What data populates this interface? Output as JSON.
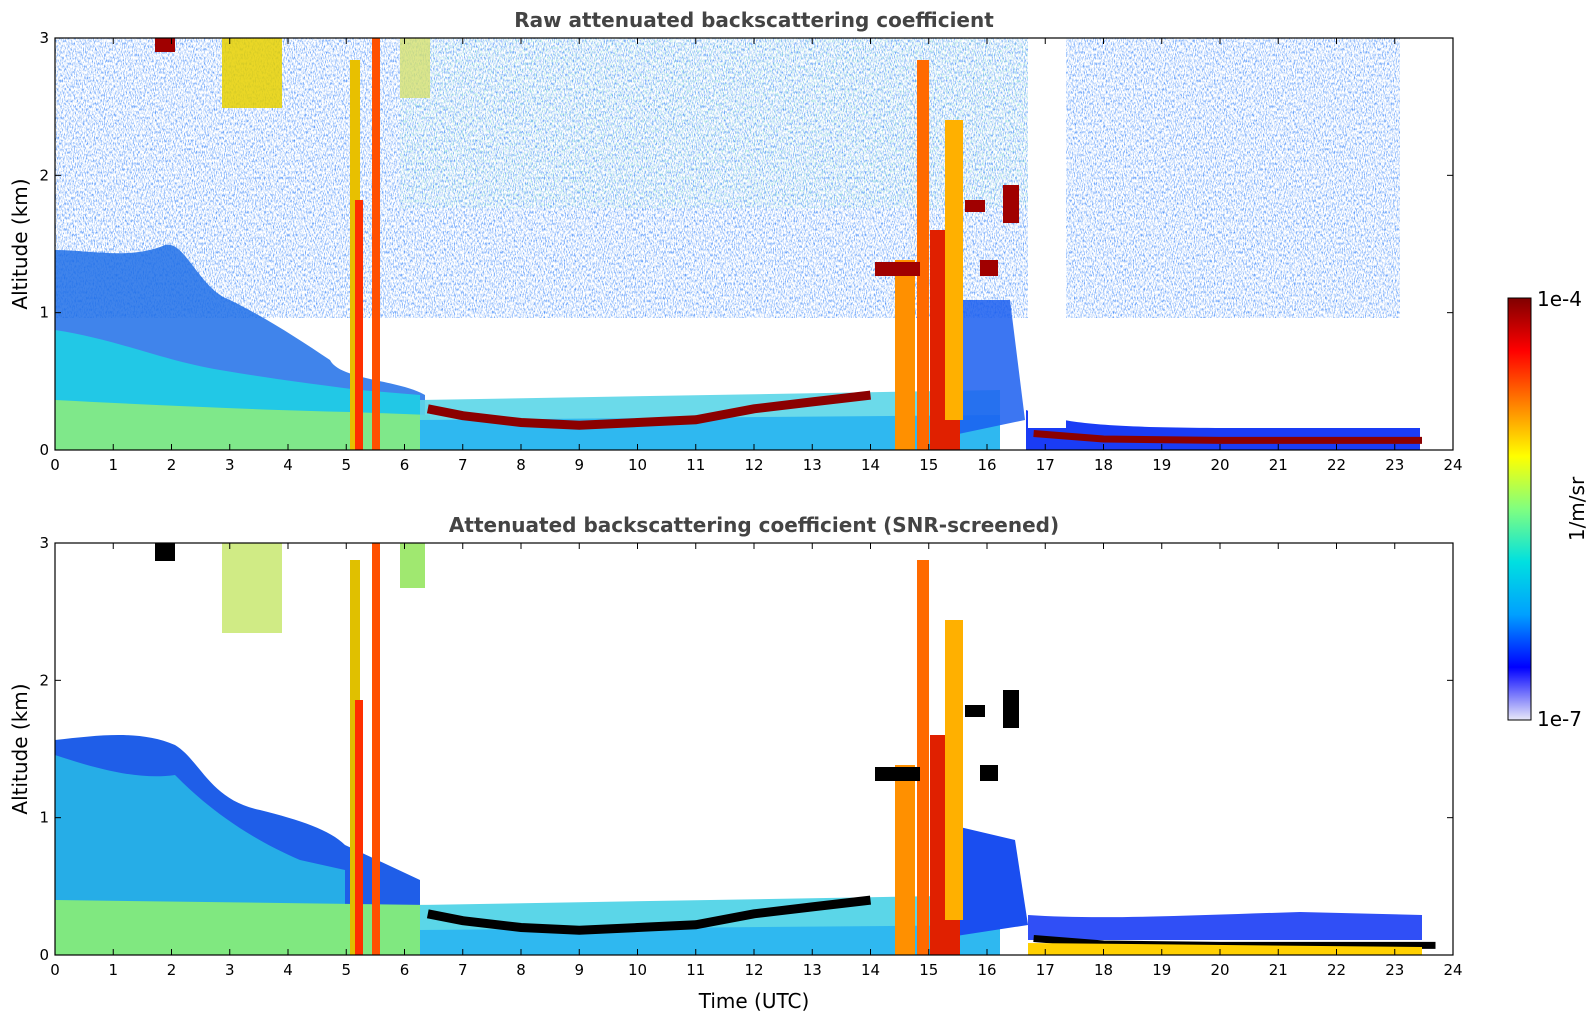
{
  "chart_data": [
    {
      "type": "heatmap",
      "title": "Raw attenuated backscattering coefficient",
      "xlabel": "",
      "ylabel": "Altitude (km)",
      "xlim": [
        0,
        24
      ],
      "ylim": [
        0,
        3
      ],
      "xticks": [
        "0",
        "1",
        "2",
        "3",
        "4",
        "5",
        "6",
        "7",
        "8",
        "9",
        "10",
        "11",
        "12",
        "13",
        "14",
        "15",
        "16",
        "17",
        "18",
        "19",
        "20",
        "21",
        "22",
        "23",
        "24"
      ],
      "yticks": [
        "0",
        "1",
        "2",
        "3"
      ],
      "features": {
        "boundary_layer_top_km": [
          {
            "t": 6.4,
            "h": 0.3
          },
          {
            "t": 7,
            "h": 0.25
          },
          {
            "t": 8,
            "h": 0.2
          },
          {
            "t": 9,
            "h": 0.18
          },
          {
            "t": 10,
            "h": 0.2
          },
          {
            "t": 11,
            "h": 0.22
          },
          {
            "t": 12,
            "h": 0.3
          },
          {
            "t": 13,
            "h": 0.35
          },
          {
            "t": 14,
            "h": 0.4
          }
        ],
        "low_cloud_layer_km": [
          {
            "t": 16.8,
            "h": 0.12
          },
          {
            "t": 18,
            "h": 0.08
          },
          {
            "t": 20,
            "h": 0.07
          },
          {
            "t": 22,
            "h": 0.07
          },
          {
            "t": 23.7,
            "h": 0.07
          }
        ],
        "cloud_layer_1_3km": {
          "t_start": 14.3,
          "t_end": 14.9,
          "h": 1.28
        },
        "data_end_utc": 23.7
      }
    },
    {
      "type": "heatmap",
      "title": "Attenuated backscattering coefficient (SNR-screened)",
      "xlabel": "Time (UTC)",
      "ylabel": "Altitude (km)",
      "xlim": [
        0,
        24
      ],
      "ylim": [
        0,
        3
      ],
      "xticks": [
        "0",
        "1",
        "2",
        "3",
        "4",
        "5",
        "6",
        "7",
        "8",
        "9",
        "10",
        "11",
        "12",
        "13",
        "14",
        "15",
        "16",
        "17",
        "18",
        "19",
        "20",
        "21",
        "22",
        "23",
        "24"
      ],
      "yticks": [
        "0",
        "1",
        "2",
        "3"
      ]
    }
  ],
  "colorbar": {
    "max_label": "1e-4",
    "min_label": "1e-7",
    "unit_label": "1/m/sr",
    "scale": "log",
    "colors": [
      "#e8e8f8",
      "#0000ff",
      "#00a0ff",
      "#00e0e0",
      "#80ff80",
      "#ffff00",
      "#ff8000",
      "#ff0000",
      "#800000"
    ]
  }
}
